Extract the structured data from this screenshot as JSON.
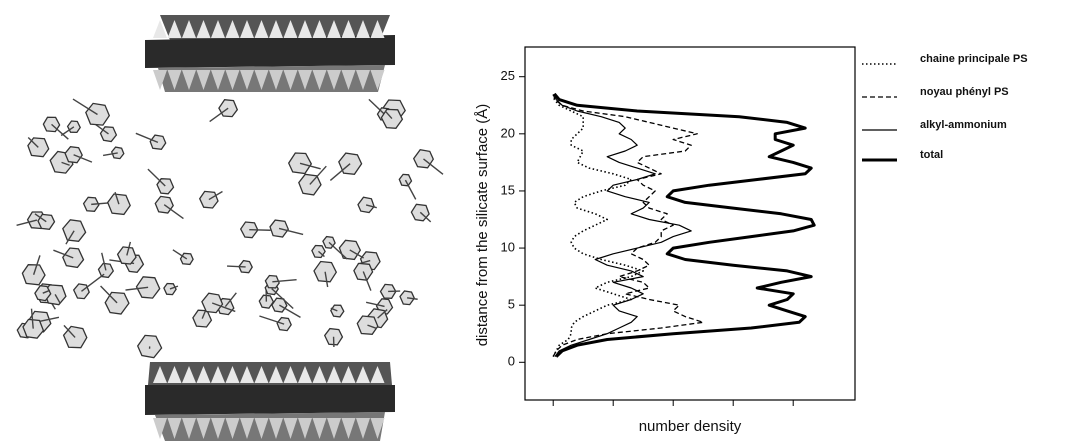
{
  "chart_data": {
    "type": "line",
    "x_label": "number density",
    "y_label": "distance from the silicate surface (Å)",
    "xlim": [
      -0.47,
      5.03
    ],
    "xticks": [
      0,
      1,
      2,
      3,
      4
    ],
    "ylim": [
      -3.3,
      27.6
    ],
    "yticks": [
      0,
      5,
      10,
      15,
      20,
      25
    ],
    "y": [
      0.5,
      1,
      1.5,
      2,
      2.5,
      3,
      3.5,
      4,
      4.5,
      5,
      5.5,
      6,
      6.5,
      7,
      7.5,
      8,
      8.5,
      9,
      9.5,
      10,
      10.5,
      11,
      11.5,
      12,
      12.5,
      13,
      13.5,
      14,
      14.5,
      15,
      15.5,
      16,
      16.5,
      17,
      17.5,
      18,
      18.5,
      19,
      19.5,
      20,
      20.5,
      21,
      21.5,
      22,
      22.5,
      23,
      23.5
    ],
    "series": [
      {
        "name": "chaine principale PS",
        "color": "#000000",
        "dash": "dotted",
        "width": 1.6,
        "values": [
          0,
          0.05,
          0.1,
          0.25,
          0.3,
          0.3,
          0.35,
          0.5,
          0.7,
          0.9,
          1.3,
          1.0,
          0.7,
          0.9,
          1.3,
          1.5,
          1.2,
          0.8,
          0.5,
          0.35,
          0.3,
          0.35,
          0.5,
          0.7,
          0.9,
          0.7,
          0.4,
          0.35,
          0.5,
          0.8,
          1.2,
          1.3,
          1.0,
          0.6,
          0.4,
          0.45,
          0.5,
          0.3,
          0.3,
          0.4,
          0.5,
          0.5,
          0.5,
          0.3,
          0.1,
          0.02,
          0
        ]
      },
      {
        "name": "noyau phényl PS",
        "color": "#000000",
        "dash": "dashed",
        "width": 1.3,
        "values": [
          0,
          0.05,
          0.15,
          0.4,
          0.9,
          1.8,
          2.5,
          2.2,
          2.0,
          2.1,
          1.6,
          1.2,
          1.6,
          1.5,
          1.1,
          1.4,
          1.6,
          1.5,
          1.3,
          1.4,
          1.7,
          1.8,
          1.8,
          2.0,
          1.8,
          1.9,
          1.6,
          1.5,
          1.6,
          1.7,
          1.5,
          1.4,
          1.8,
          1.6,
          1.4,
          1.5,
          2.2,
          2.3,
          2.0,
          2.4,
          2.0,
          1.6,
          1.2,
          0.5,
          0.15,
          0.03,
          0
        ]
      },
      {
        "name": "alkyl-ammonium",
        "color": "#000000",
        "dash": "solid",
        "width": 1.2,
        "values": [
          0.03,
          0.1,
          0.3,
          0.6,
          0.9,
          1.1,
          1.3,
          1.4,
          1.1,
          1.0,
          1.3,
          1.5,
          1.3,
          1.0,
          1.5,
          1.3,
          0.9,
          0.7,
          1.0,
          1.4,
          1.8,
          2.0,
          2.3,
          2.1,
          1.6,
          1.3,
          1.5,
          1.6,
          1.2,
          0.9,
          1.0,
          1.4,
          1.7,
          1.4,
          1.1,
          0.9,
          1.2,
          1.4,
          1.3,
          1.1,
          1.2,
          1.1,
          0.8,
          0.4,
          0.15,
          0.05,
          0.02
        ]
      },
      {
        "name": "total",
        "color": "#000000",
        "dash": "solid",
        "width": 3,
        "values": [
          0.05,
          0.15,
          0.4,
          0.9,
          2.0,
          3.3,
          4.1,
          4.2,
          3.9,
          3.6,
          3.9,
          4.0,
          3.4,
          3.8,
          4.3,
          3.9,
          3.0,
          2.2,
          1.9,
          2.0,
          2.6,
          3.3,
          4.0,
          4.35,
          4.3,
          3.8,
          3.0,
          2.2,
          1.9,
          2.0,
          2.6,
          3.4,
          4.2,
          4.3,
          4.0,
          3.6,
          3.8,
          4.0,
          3.7,
          3.7,
          4.2,
          3.9,
          3.1,
          1.4,
          0.4,
          0.1,
          0.02
        ]
      }
    ]
  }
}
